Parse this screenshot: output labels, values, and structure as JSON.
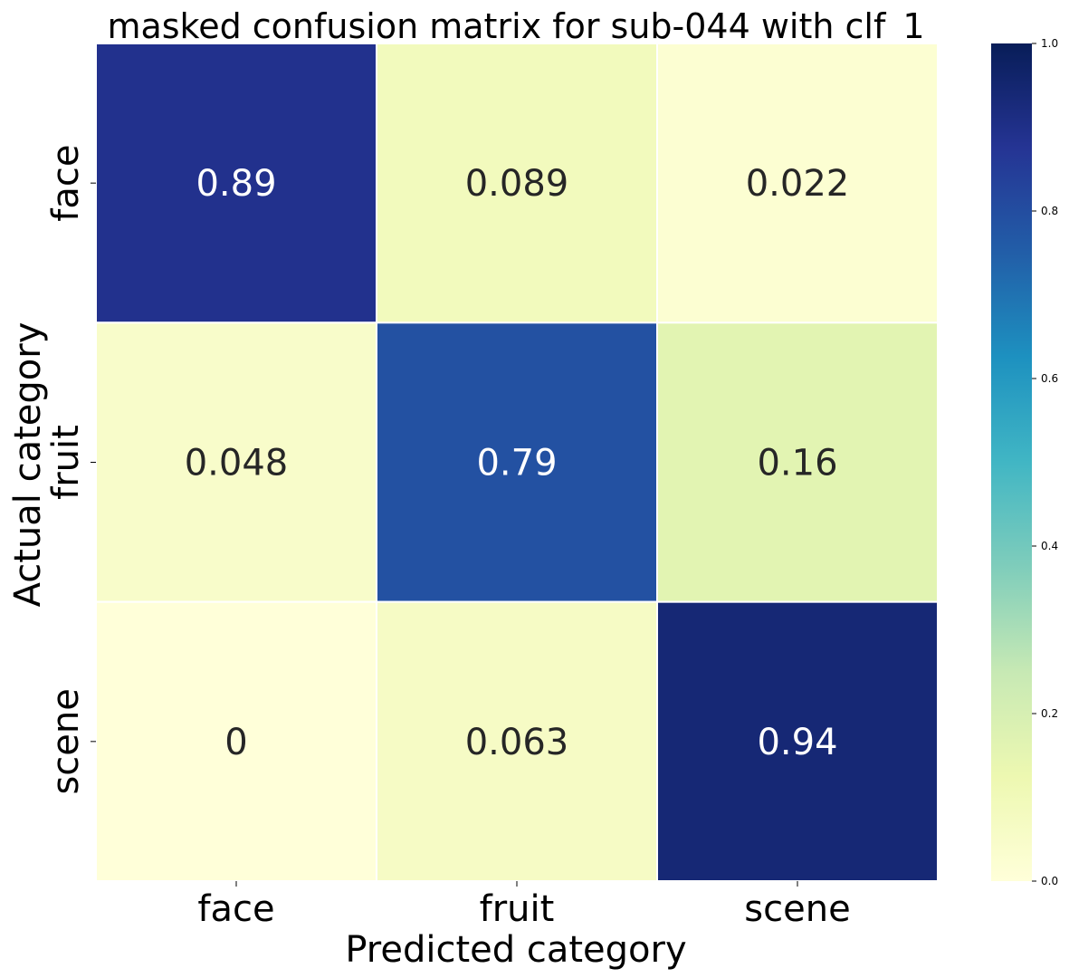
{
  "chart_data": {
    "type": "heatmap",
    "title": "masked confusion matrix for sub-044 with clf_1",
    "xlabel": "Predicted category",
    "ylabel": "Actual category",
    "x_categories": [
      "face",
      "fruit",
      "scene"
    ],
    "y_categories": [
      "face",
      "fruit",
      "scene"
    ],
    "values": [
      [
        0.89,
        0.089,
        0.022
      ],
      [
        0.048,
        0.79,
        0.16
      ],
      [
        0,
        0.063,
        0.94
      ]
    ],
    "cell_labels": [
      [
        "0.89",
        "0.089",
        "0.022"
      ],
      [
        "0.048",
        "0.79",
        "0.16"
      ],
      [
        "0",
        "0.063",
        "0.94"
      ]
    ],
    "colormap": "YlGnBu",
    "colorbar": {
      "range": [
        0,
        1
      ],
      "ticks": [
        0.0,
        0.2,
        0.4,
        0.6,
        0.8,
        1.0
      ],
      "tick_labels": [
        "0.0",
        "0.2",
        "0.4",
        "0.6",
        "0.8",
        "1.0"
      ]
    },
    "colormap_stops": [
      "#ffffd9",
      "#edf8b1",
      "#c7e9b4",
      "#7fcdbb",
      "#41b6c4",
      "#1d91c0",
      "#225ea8",
      "#253494",
      "#081d58"
    ],
    "grid": false,
    "legend": "colorbar-right"
  }
}
